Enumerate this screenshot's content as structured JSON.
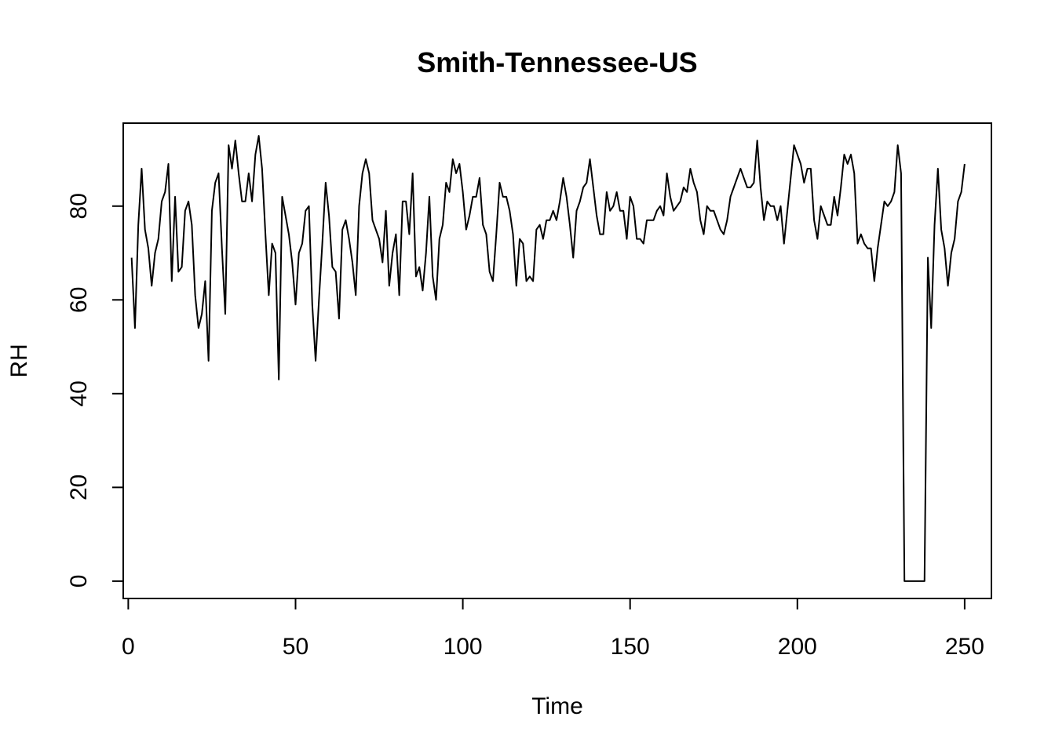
{
  "chart_data": {
    "type": "line",
    "title": "Smith-Tennessee-US",
    "xlabel": "Time",
    "ylabel": "RH",
    "xlim": [
      -1.5,
      258
    ],
    "ylim": [
      -3.7,
      97.7
    ],
    "xticks": [
      0,
      50,
      100,
      150,
      200,
      250
    ],
    "yticks": [
      0,
      20,
      40,
      60,
      80
    ],
    "grid": false,
    "legend": "none",
    "line_color": "#000000",
    "series": [
      {
        "x_start": 1,
        "values": [
          69,
          54,
          76,
          88,
          75,
          71,
          63,
          70,
          73,
          81,
          83,
          89,
          64,
          82,
          66,
          67,
          79,
          81,
          76,
          61,
          54,
          57,
          64,
          47,
          79,
          85,
          87,
          71,
          57,
          93,
          88,
          94,
          87,
          81,
          81,
          87,
          81,
          91,
          95,
          88,
          74,
          61,
          72,
          70,
          43,
          82,
          78,
          74,
          68,
          59,
          70,
          72,
          79,
          80,
          59,
          47,
          60,
          72,
          85,
          78,
          67,
          66,
          56,
          75,
          77,
          73,
          68,
          61,
          80,
          87,
          90,
          87,
          77,
          75,
          73,
          68,
          79,
          63,
          70,
          74,
          61,
          81,
          81,
          74,
          87,
          65,
          67,
          62,
          70,
          82,
          65,
          60,
          73,
          76,
          85,
          83,
          90,
          87,
          89,
          83,
          75,
          78,
          82,
          82,
          86,
          76,
          74,
          66,
          64,
          74,
          85,
          82,
          82,
          79,
          74,
          63,
          73,
          72,
          64,
          65,
          64,
          75,
          76,
          73,
          77,
          77,
          79,
          77,
          81,
          86,
          82,
          76,
          69,
          79,
          81,
          84,
          85,
          90,
          84,
          78,
          74,
          74,
          83,
          79,
          80,
          83,
          79,
          79,
          73,
          82,
          80,
          73,
          73,
          72,
          77,
          77,
          77,
          79,
          80,
          78,
          87,
          82,
          79,
          80,
          81,
          84,
          83,
          88,
          85,
          83,
          77,
          74,
          80,
          79,
          79,
          77,
          75,
          74,
          77,
          82,
          84,
          86,
          88,
          86,
          84,
          84,
          85,
          94,
          84,
          77,
          81,
          80,
          80,
          77,
          80,
          72,
          79,
          86,
          93,
          91,
          89,
          85,
          88,
          88,
          77,
          73,
          80,
          78,
          76,
          76,
          82,
          78,
          84,
          91,
          89,
          91,
          87,
          72,
          74,
          72,
          71,
          71,
          64,
          71,
          76,
          81,
          80,
          81,
          83,
          93,
          87,
          0,
          0,
          0,
          0,
          0,
          0,
          0,
          69,
          54,
          76,
          88,
          75,
          71,
          63,
          70,
          73,
          81,
          83,
          89
        ]
      }
    ]
  }
}
